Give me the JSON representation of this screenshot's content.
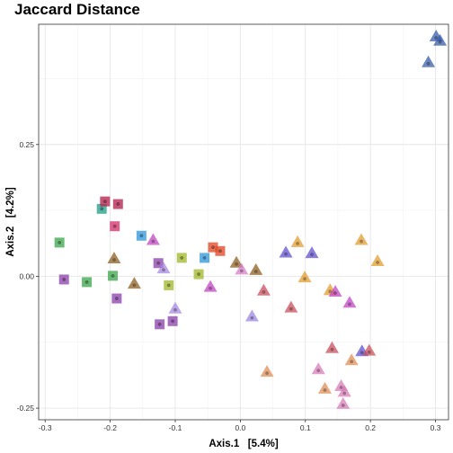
{
  "chart_data": {
    "type": "scatter",
    "title": "Jaccard Distance",
    "xlabel": "Axis.1   [5.4%]",
    "ylabel": "Axis.2   [4.2%]",
    "xlim": [
      -0.31,
      0.32
    ],
    "ylim": [
      -0.272,
      0.478
    ],
    "x_ticks": [
      -0.3,
      -0.2,
      -0.1,
      0.0,
      0.1,
      0.2,
      0.3
    ],
    "x_tick_labels": [
      "-0.3",
      "-0.2",
      "-0.1",
      "0.0",
      "0.1",
      "0.2",
      "0.3"
    ],
    "y_ticks": [
      -0.25,
      0.0,
      0.25
    ],
    "y_tick_labels": [
      "-0.25",
      "0.00",
      "0.25"
    ],
    "grid": true,
    "legend": "none",
    "points": [
      {
        "x": -0.278,
        "y": 0.064,
        "shape": "square",
        "color": "#3fa84e"
      },
      {
        "x": -0.271,
        "y": -0.006,
        "shape": "square",
        "color": "#8e44ad"
      },
      {
        "x": -0.236,
        "y": -0.011,
        "shape": "square",
        "color": "#3fa84e"
      },
      {
        "x": -0.213,
        "y": 0.128,
        "shape": "square",
        "color": "#27a08a"
      },
      {
        "x": -0.208,
        "y": 0.142,
        "shape": "square",
        "color": "#b5244f"
      },
      {
        "x": -0.188,
        "y": 0.137,
        "shape": "square",
        "color": "#b5244f"
      },
      {
        "x": -0.193,
        "y": 0.095,
        "shape": "square",
        "color": "#d6336c"
      },
      {
        "x": -0.196,
        "y": 0.001,
        "shape": "square",
        "color": "#3fa84e"
      },
      {
        "x": -0.19,
        "y": -0.042,
        "shape": "square",
        "color": "#8e44ad"
      },
      {
        "x": -0.152,
        "y": 0.077,
        "shape": "square",
        "color": "#3399dd"
      },
      {
        "x": -0.126,
        "y": 0.025,
        "shape": "square",
        "color": "#8e44ad"
      },
      {
        "x": -0.124,
        "y": -0.091,
        "shape": "square",
        "color": "#8e44ad"
      },
      {
        "x": -0.104,
        "y": -0.085,
        "shape": "square",
        "color": "#8e44ad"
      },
      {
        "x": -0.11,
        "y": -0.017,
        "shape": "square",
        "color": "#a3b830"
      },
      {
        "x": -0.09,
        "y": 0.035,
        "shape": "square",
        "color": "#a3b830"
      },
      {
        "x": -0.064,
        "y": 0.004,
        "shape": "square",
        "color": "#a3b830"
      },
      {
        "x": -0.055,
        "y": 0.035,
        "shape": "square",
        "color": "#3399dd"
      },
      {
        "x": -0.042,
        "y": 0.055,
        "shape": "square",
        "color": "#e04a28"
      },
      {
        "x": -0.031,
        "y": 0.048,
        "shape": "square",
        "color": "#e04a28"
      },
      {
        "x": -0.194,
        "y": 0.033,
        "shape": "triangle",
        "color": "#8b5a1b"
      },
      {
        "x": -0.163,
        "y": -0.015,
        "shape": "triangle",
        "color": "#8b5a1b"
      },
      {
        "x": -0.134,
        "y": 0.068,
        "shape": "triangle",
        "color": "#c03ec0"
      },
      {
        "x": -0.118,
        "y": 0.014,
        "shape": "triangle",
        "color": "#a585e0"
      },
      {
        "x": -0.1,
        "y": -0.062,
        "shape": "triangle",
        "color": "#a585e0"
      },
      {
        "x": -0.046,
        "y": -0.021,
        "shape": "triangle",
        "color": "#c03ec0"
      },
      {
        "x": -0.006,
        "y": 0.025,
        "shape": "triangle",
        "color": "#8b5a1b"
      },
      {
        "x": 0.002,
        "y": 0.012,
        "shape": "triangle",
        "color": "#d87ac8"
      },
      {
        "x": 0.024,
        "y": 0.011,
        "shape": "triangle",
        "color": "#8b5a1b"
      },
      {
        "x": 0.018,
        "y": -0.077,
        "shape": "triangle",
        "color": "#9b82e0"
      },
      {
        "x": 0.036,
        "y": -0.028,
        "shape": "triangle",
        "color": "#c74a55"
      },
      {
        "x": 0.041,
        "y": -0.182,
        "shape": "triangle",
        "color": "#de8a52"
      },
      {
        "x": 0.07,
        "y": 0.044,
        "shape": "triangle",
        "color": "#5a4bd0"
      },
      {
        "x": 0.088,
        "y": 0.064,
        "shape": "triangle",
        "color": "#e09a2a"
      },
      {
        "x": 0.078,
        "y": -0.06,
        "shape": "triangle",
        "color": "#c74a55"
      },
      {
        "x": 0.099,
        "y": -0.003,
        "shape": "triangle",
        "color": "#e09a2a"
      },
      {
        "x": 0.11,
        "y": 0.043,
        "shape": "triangle",
        "color": "#5a4bd0"
      },
      {
        "x": 0.12,
        "y": -0.177,
        "shape": "triangle",
        "color": "#d877b5"
      },
      {
        "x": 0.13,
        "y": -0.214,
        "shape": "triangle",
        "color": "#de8a52"
      },
      {
        "x": 0.138,
        "y": -0.027,
        "shape": "triangle",
        "color": "#e09a2a"
      },
      {
        "x": 0.141,
        "y": -0.137,
        "shape": "triangle",
        "color": "#c74a55"
      },
      {
        "x": 0.146,
        "y": -0.03,
        "shape": "triangle",
        "color": "#c03ec0"
      },
      {
        "x": 0.155,
        "y": -0.209,
        "shape": "triangle",
        "color": "#d877b5"
      },
      {
        "x": 0.16,
        "y": -0.22,
        "shape": "triangle",
        "color": "#d877b5"
      },
      {
        "x": 0.158,
        "y": -0.243,
        "shape": "triangle",
        "color": "#d877b5"
      },
      {
        "x": 0.168,
        "y": -0.051,
        "shape": "triangle",
        "color": "#c03ec0"
      },
      {
        "x": 0.171,
        "y": -0.16,
        "shape": "triangle",
        "color": "#de8a52"
      },
      {
        "x": 0.186,
        "y": 0.068,
        "shape": "triangle",
        "color": "#e09a2a"
      },
      {
        "x": 0.187,
        "y": -0.143,
        "shape": "triangle",
        "color": "#5a4bd0"
      },
      {
        "x": 0.198,
        "y": -0.142,
        "shape": "triangle",
        "color": "#c74a55"
      },
      {
        "x": 0.211,
        "y": 0.028,
        "shape": "triangle",
        "color": "#e09a2a"
      },
      {
        "x": 0.289,
        "y": 0.405,
        "shape": "triangle",
        "color": "#3358a8"
      },
      {
        "x": 0.301,
        "y": 0.454,
        "shape": "triangle",
        "color": "#3358a8"
      },
      {
        "x": 0.307,
        "y": 0.446,
        "shape": "triangle",
        "color": "#3358a8"
      }
    ]
  }
}
